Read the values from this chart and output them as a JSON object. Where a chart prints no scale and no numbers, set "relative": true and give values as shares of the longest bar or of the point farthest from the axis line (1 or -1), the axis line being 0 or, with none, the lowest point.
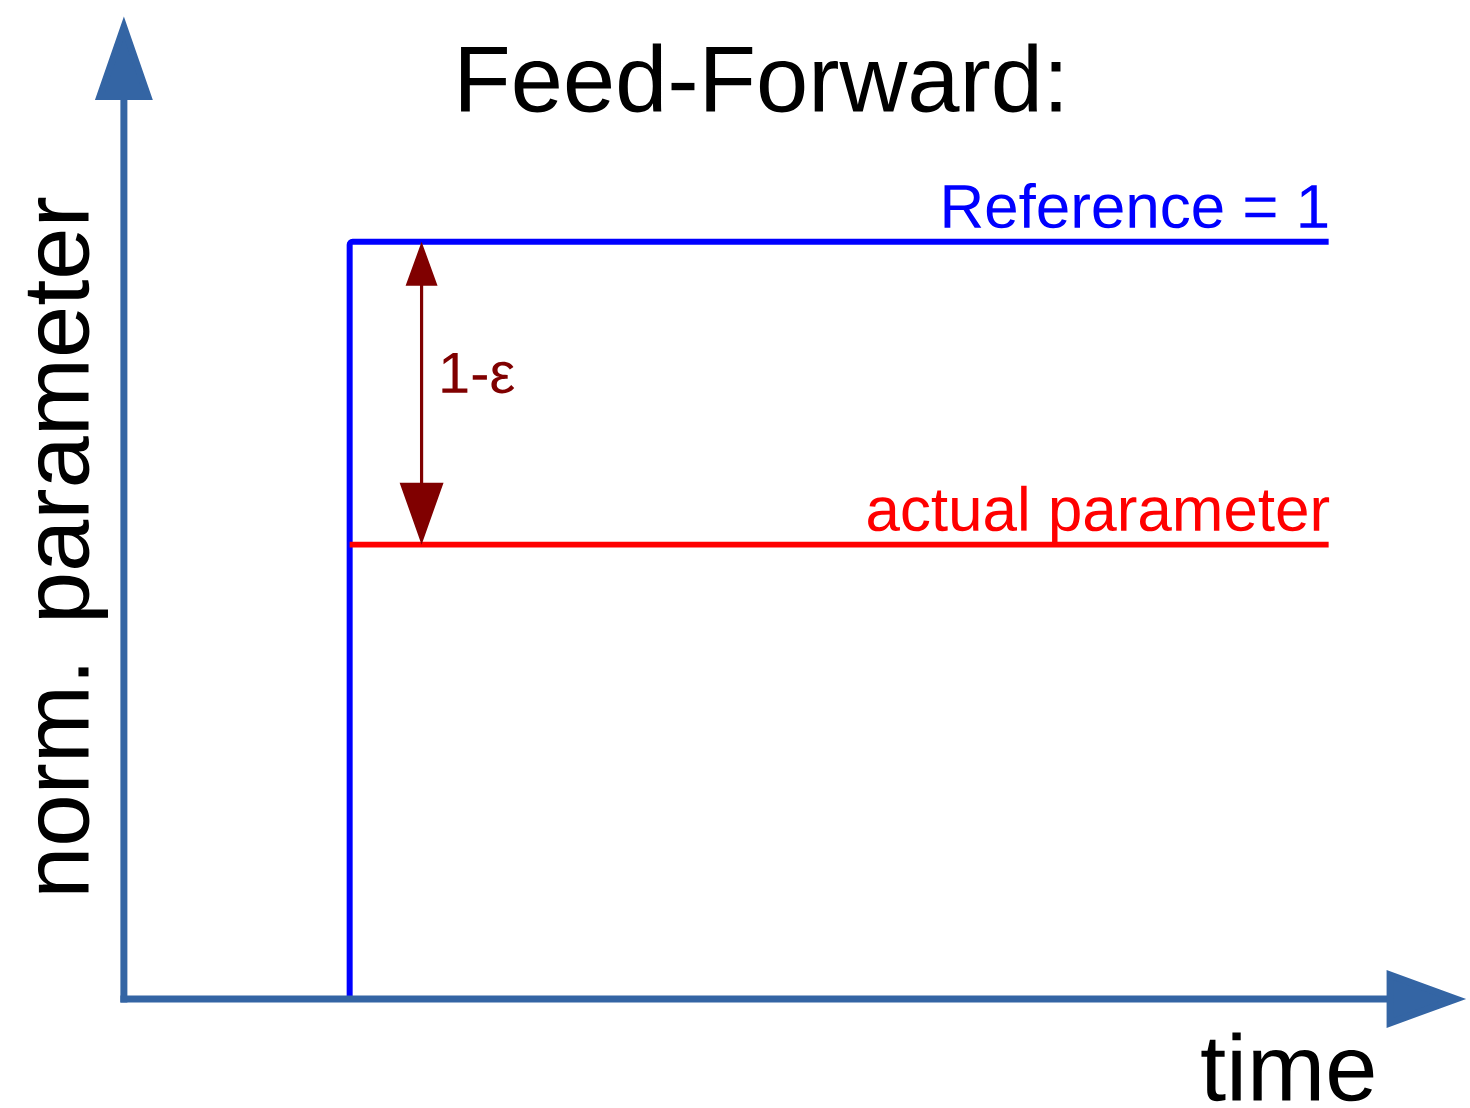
{
  "chart_data": {
    "type": "step",
    "title": "Feed-Forward:",
    "xlabel": "time",
    "ylabel": "norm. parameter",
    "relative": true,
    "categories": [
      null,
      null
    ],
    "series": [
      {
        "name": "Reference = 1",
        "color": "#0000ff",
        "values": [
          0,
          1
        ]
      },
      {
        "name": "actual parameter",
        "type": "line",
        "color": "#ff0000",
        "values": [
          0.6,
          0.6
        ]
      }
    ],
    "annotations": [
      "1-ε"
    ]
  }
}
